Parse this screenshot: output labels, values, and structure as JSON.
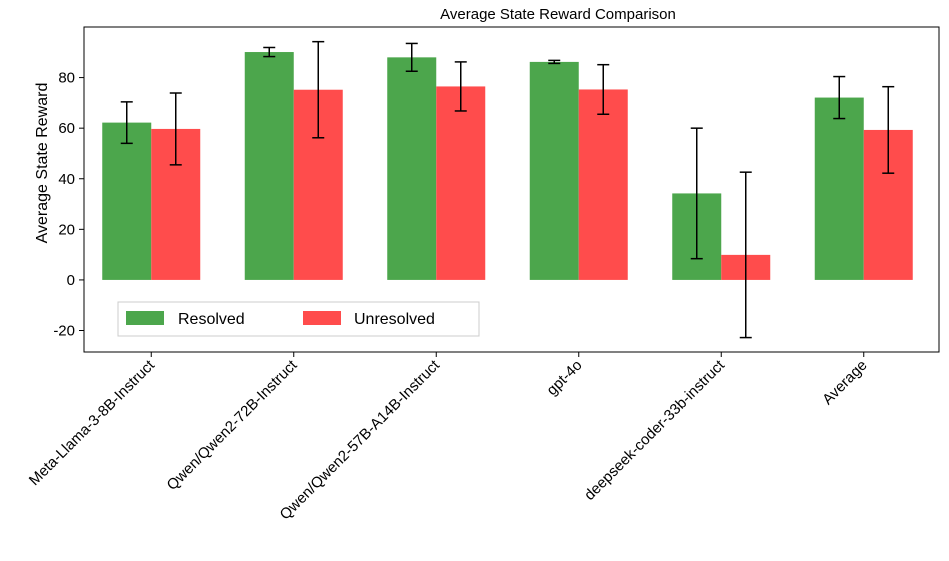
{
  "chart_data": {
    "type": "bar",
    "title": "Average State Reward Comparison",
    "xlabel": "",
    "ylabel": "Average State Reward",
    "ylim": [
      -28.5,
      100
    ],
    "yticks": [
      -20,
      0,
      20,
      40,
      60,
      80
    ],
    "categories": [
      "Meta-Llama-3-8B-Instruct",
      "Qwen/Qwen2-72B-Instruct",
      "Qwen/Qwen2-57B-A14B-Instruct",
      "gpt-4o",
      "deepseek-coder-33b-instruct",
      "Average"
    ],
    "series": [
      {
        "name": "Resolved",
        "color": "#4ca64c",
        "values": [
          62.2,
          90.1,
          88.0,
          86.2,
          34.2,
          72.1
        ],
        "err": [
          8.2,
          1.8,
          5.5,
          0.6,
          25.8,
          8.3
        ]
      },
      {
        "name": "Unresolved",
        "color": "#ff4c4c",
        "values": [
          59.7,
          75.2,
          76.5,
          75.3,
          9.9,
          59.3
        ],
        "err": [
          14.2,
          19.0,
          9.7,
          9.8,
          32.7,
          17.1
        ]
      }
    ],
    "legend_position": "lower-left",
    "grid": false
  }
}
